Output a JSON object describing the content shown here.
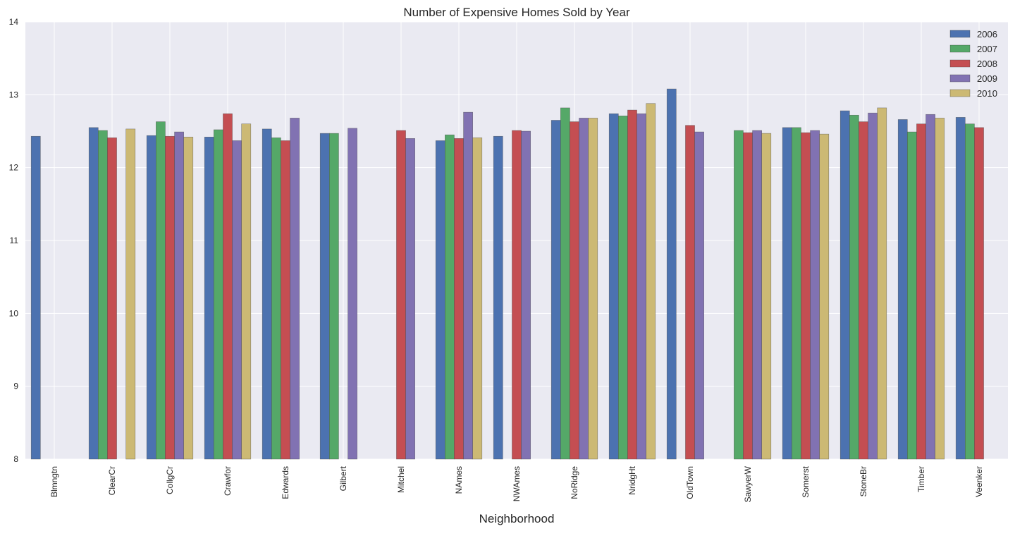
{
  "chart_data": {
    "type": "bar",
    "title": "Number of Expensive Homes Sold by Year",
    "xlabel": "Neighborhood",
    "ylabel": "",
    "ylim": [
      8,
      14
    ],
    "yticks": [
      8,
      9,
      10,
      11,
      12,
      13,
      14
    ],
    "grid": true,
    "legend_position": "top-right",
    "categories": [
      "Blmngtn",
      "ClearCr",
      "CollgCr",
      "Crawfor",
      "Edwards",
      "Gilbert",
      "Mitchel",
      "NAmes",
      "NWAmes",
      "NoRidge",
      "NridgHt",
      "OldTown",
      "SawyerW",
      "Somerst",
      "StoneBr",
      "Timber",
      "Veenker"
    ],
    "series": [
      {
        "name": "2006",
        "color": "#4c72b0",
        "values": [
          12.43,
          12.55,
          12.44,
          12.42,
          12.53,
          12.47,
          null,
          12.37,
          12.43,
          12.65,
          12.74,
          13.08,
          null,
          12.55,
          12.78,
          12.66,
          12.69
        ]
      },
      {
        "name": "2007",
        "color": "#55a868",
        "values": [
          null,
          12.51,
          12.63,
          12.52,
          12.41,
          12.47,
          null,
          12.45,
          null,
          12.82,
          12.71,
          null,
          12.51,
          12.55,
          12.72,
          12.49,
          12.6
        ]
      },
      {
        "name": "2008",
        "color": "#c44e52",
        "values": [
          null,
          12.41,
          12.43,
          12.74,
          12.37,
          null,
          12.51,
          12.4,
          12.51,
          12.63,
          12.79,
          12.58,
          12.48,
          12.48,
          12.63,
          12.6,
          12.55
        ]
      },
      {
        "name": "2009",
        "color": "#8172b2",
        "values": [
          null,
          null,
          12.49,
          12.37,
          12.68,
          12.54,
          12.4,
          12.76,
          12.5,
          12.68,
          12.74,
          12.49,
          12.51,
          12.51,
          12.75,
          12.73,
          null
        ]
      },
      {
        "name": "2010",
        "color": "#ccb974",
        "values": [
          null,
          12.53,
          12.42,
          12.6,
          null,
          null,
          null,
          12.41,
          null,
          12.68,
          12.88,
          null,
          12.47,
          12.46,
          12.82,
          12.68,
          null
        ]
      }
    ]
  }
}
